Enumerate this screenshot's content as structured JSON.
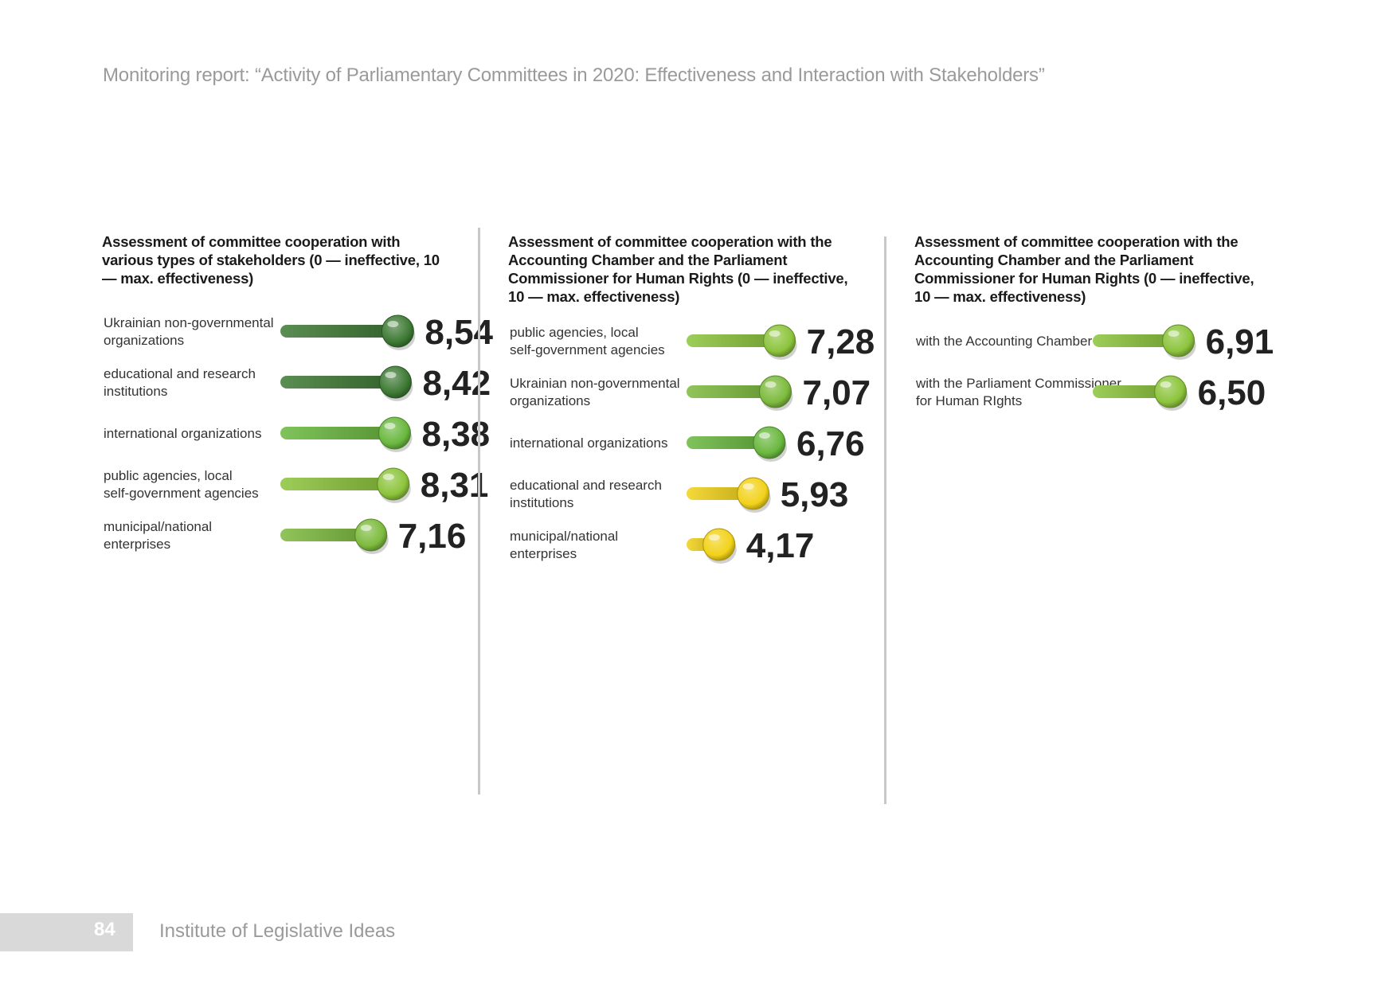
{
  "header": {
    "title": "Monitoring report: “Activity of Parliamentary Committees in 2020: Effectiveness and Interaction with Stakeholders”"
  },
  "footer": {
    "page_number": "84",
    "publisher": "Institute of Legislative Ideas"
  },
  "chart_data": [
    {
      "type": "bar",
      "title": "Assessment of committee cooperation with various types of stakeholders (0 — ineffective, 10 — max. effectiveness)",
      "categories": [
        [
          "Ukrainian non-governmental",
          "organizations"
        ],
        [
          "educational and research",
          "institutions"
        ],
        [
          "international organizations"
        ],
        [
          "public agencies, local",
          "self-government agencies"
        ],
        [
          "municipal/national",
          "enterprises"
        ]
      ],
      "values": [
        8.54,
        8.42,
        8.38,
        8.31,
        7.16
      ],
      "value_labels": [
        "8,54",
        "8,42",
        "8,38",
        "8,31",
        "7,16"
      ],
      "ylim": [
        0,
        10
      ],
      "colors": [
        "#3e7a35",
        "#3e7a35",
        "#6ab83f",
        "#8cc43c",
        "#7dbb3e"
      ]
    },
    {
      "type": "bar",
      "title": "Assessment of committee cooperation with the Accounting Chamber and the Parliament Commissioner for Human Rights (0 — ineffective, 10 — max. effectiveness)",
      "categories": [
        [
          "public agencies, local",
          "self-government agencies"
        ],
        [
          "Ukrainian non-governmental",
          "organizations"
        ],
        [
          "international organizations"
        ],
        [
          "educational and research",
          "institutions"
        ],
        [
          "municipal/national",
          "enterprises"
        ]
      ],
      "values": [
        7.28,
        7.07,
        6.76,
        5.93,
        4.17
      ],
      "value_labels": [
        "7,28",
        "7,07",
        "6,76",
        "5,93",
        "4,17"
      ],
      "ylim": [
        0,
        10
      ],
      "colors": [
        "#8cc43c",
        "#7dbb3e",
        "#6ab83f",
        "#f2d21a",
        "#f2d21a"
      ]
    },
    {
      "type": "bar",
      "title": "Assessment of committee cooperation with the Accounting Chamber and the Parliament Commissioner for Human Rights (0 — ineffective, 10 — max. effectiveness)",
      "categories": [
        [
          "with the Accounting Chamber"
        ],
        [
          "with the Parliament Commissioner",
          "for Human RIghts"
        ]
      ],
      "values": [
        6.91,
        6.5
      ],
      "value_labels": [
        "6,91",
        "6,50"
      ],
      "ylim": [
        0,
        10
      ],
      "colors": [
        "#8cc43c",
        "#8cc43c"
      ]
    }
  ]
}
